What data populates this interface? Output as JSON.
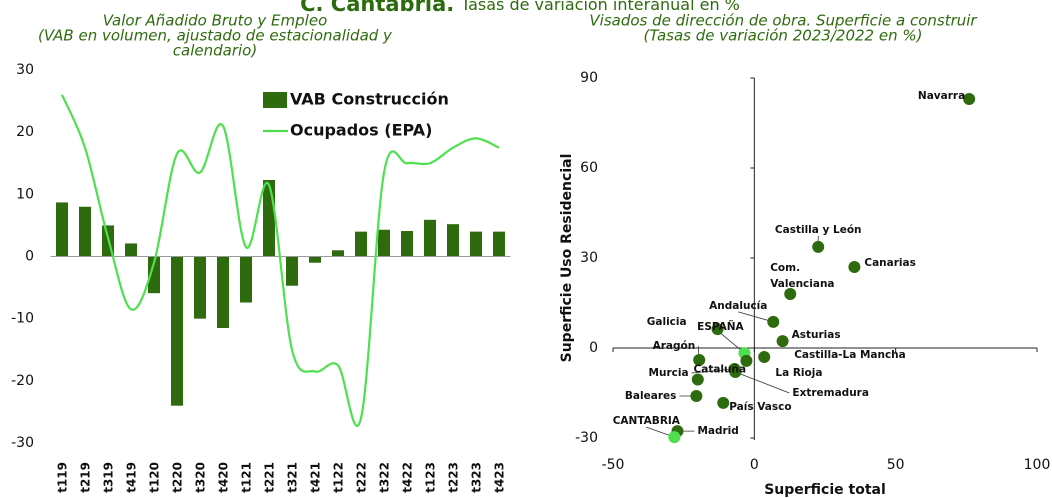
{
  "title_bold": "C. Cantabria.",
  "title_rest": "Tasas de variación interanual en %",
  "chart_data": [
    {
      "type": "combo",
      "title": [
        "Valor Añadido Bruto y Empleo",
        "(VAB en volumen,  ajustado de estacionalidad y",
        "calendario)"
      ],
      "categories": [
        "t119",
        "t219",
        "t319",
        "t419",
        "t120",
        "t220",
        "t320",
        "t420",
        "t121",
        "t221",
        "t321",
        "t421",
        "t122",
        "t222",
        "t322",
        "t422",
        "t123",
        "t223",
        "t323",
        "t423"
      ],
      "series": [
        {
          "name": "VAB Construcción",
          "kind": "bar",
          "color": "#2e6b0e",
          "values": [
            8.7,
            8,
            5,
            2.1,
            -5.9,
            -24,
            -10,
            -11.5,
            -7.4,
            12.3,
            -4.7,
            -1,
            1,
            4,
            4.3,
            4.1,
            5.9,
            5.2,
            4,
            4
          ]
        },
        {
          "name": "Ocupados (EPA)",
          "kind": "line",
          "color": "#4ee04e",
          "values": [
            26,
            17.5,
            3,
            -8.5,
            -1,
            16.5,
            13.5,
            21,
            1.5,
            11.5,
            -15,
            -18.5,
            -17.5,
            -26,
            13.5,
            15,
            15,
            17.5,
            19,
            17.5
          ]
        }
      ],
      "ylim": [
        -30,
        30
      ],
      "yticks": [
        -30,
        -20,
        -10,
        0,
        10,
        20,
        30
      ],
      "grid": false
    },
    {
      "type": "scatter",
      "title": [
        "Visados de dirección de obra. Superficie a construir",
        "(Tasas de variación 2023/2022 en %)"
      ],
      "xlabel": "Superficie total",
      "ylabel": "Superficie Uso Residencial",
      "labels": [
        "Navarra",
        "Castilla y León",
        "Canarias",
        "Com. Valenciana",
        "Andalucía",
        "Asturias",
        "Galicia",
        "ESPAÑA",
        "Castilla-La Mancha",
        "La Rioja",
        "Aragón",
        "Murcia",
        "Extremadura",
        "Cataluña",
        "País Vasco",
        "Madrid",
        "CANTABRIA",
        "Baleares"
      ],
      "x": [
        76,
        22.6,
        35.4,
        12.7,
        6.7,
        10,
        -13,
        -3.5,
        3.5,
        -2.8,
        -19.5,
        -7,
        -6.7,
        -20,
        -11,
        -27.2,
        -28.3,
        -20.5
      ],
      "values": [
        83,
        33.7,
        27,
        18,
        8.7,
        2.3,
        6.3,
        -1.7,
        -3,
        -4.3,
        -4,
        -7,
        -8,
        -10.5,
        -18.3,
        -27.7,
        -29.7,
        -16
      ],
      "colors": [
        "#2e6b0e",
        "#2e6b0e",
        "#2e6b0e",
        "#2e6b0e",
        "#2e6b0e",
        "#2e6b0e",
        "#2e6b0e",
        "#4ee04e",
        "#2e6b0e",
        "#2e6b0e",
        "#2e6b0e",
        "#2e6b0e",
        "#2e6b0e",
        "#2e6b0e",
        "#2e6b0e",
        "#2e6b0e",
        "#4ee04e",
        "#2e6b0e"
      ],
      "xlim": [
        -50,
        100
      ],
      "xticks": [
        -50,
        0,
        50,
        100
      ],
      "ylim": [
        -30,
        90
      ],
      "yticks": [
        -30,
        0,
        30,
        60,
        90
      ]
    }
  ]
}
